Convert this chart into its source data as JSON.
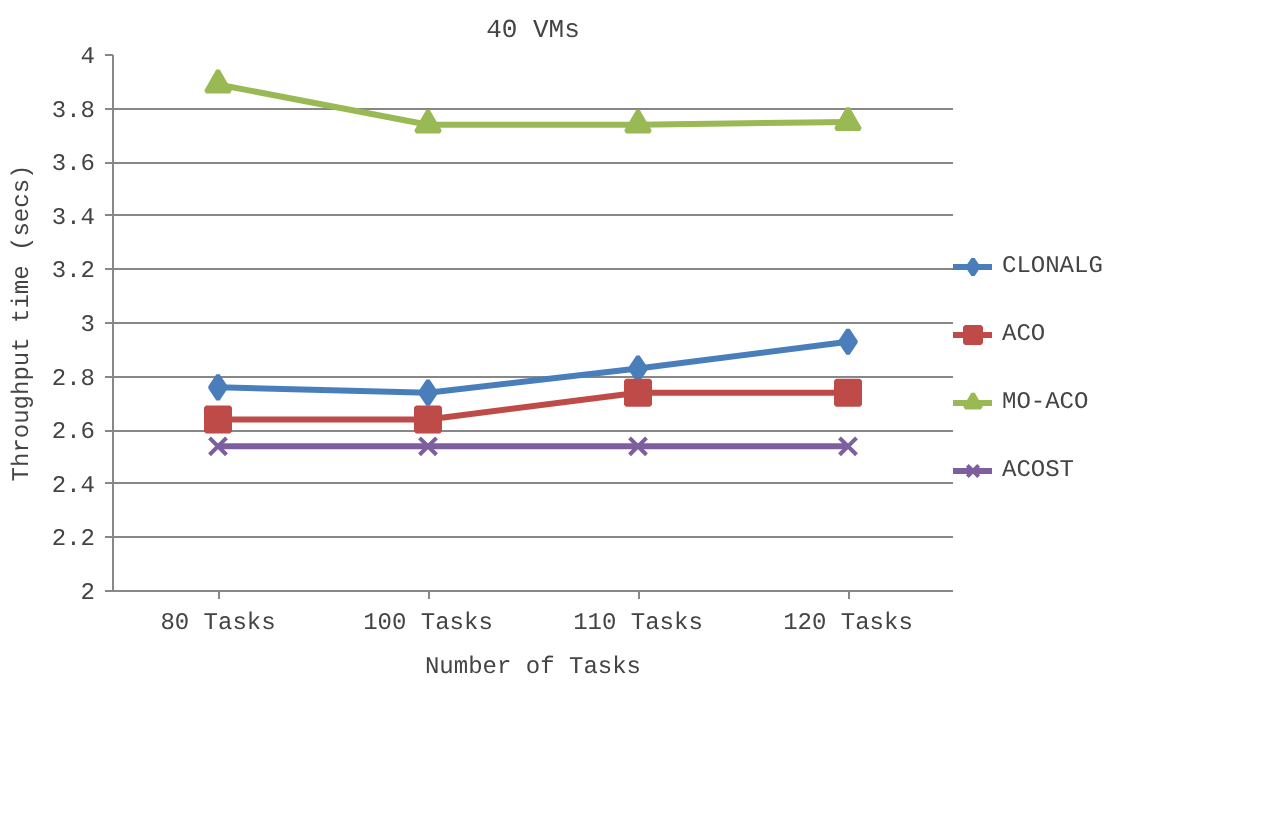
{
  "chart_data": {
    "type": "line",
    "title": "40 VMs",
    "xlabel": "Number of Tasks",
    "ylabel": "Throughput time (secs)",
    "categories": [
      "80 Tasks",
      "100 Tasks",
      "110 Tasks",
      "120 Tasks"
    ],
    "series": [
      {
        "name": "CLONALG",
        "color": "#4a7ebb",
        "marker": "diamond",
        "values": [
          2.76,
          2.74,
          2.83,
          2.93
        ]
      },
      {
        "name": "ACO",
        "color": "#be4b48",
        "marker": "square",
        "values": [
          2.64,
          2.64,
          2.74,
          2.74
        ]
      },
      {
        "name": "MO-ACO",
        "color": "#98b954",
        "marker": "triangle",
        "values": [
          3.89,
          3.74,
          3.74,
          3.75
        ]
      },
      {
        "name": "ACOST",
        "color": "#7d5fa0",
        "marker": "cross",
        "values": [
          2.54,
          2.54,
          2.54,
          2.54
        ]
      }
    ],
    "ylim": [
      2,
      4
    ],
    "yticks": [
      2,
      2.2,
      2.4,
      2.6,
      2.8,
      3,
      3.2,
      3.4,
      3.6,
      3.8,
      4
    ],
    "grid": "y",
    "legend": "right",
    "line_style": "solid"
  }
}
